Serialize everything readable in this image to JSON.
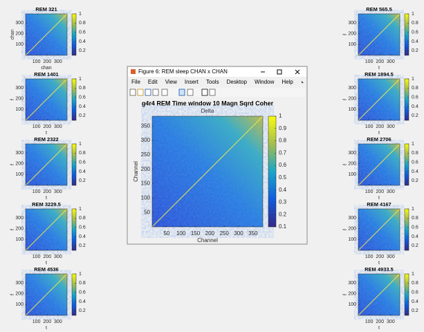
{
  "thumb_axes": {
    "xlim": [
      0,
      384
    ],
    "ylim": [
      0,
      384
    ],
    "clim": [
      0.1,
      1
    ],
    "xticks": [
      100,
      200,
      300
    ],
    "yticks": [
      100,
      200,
      300
    ],
    "cticks": [
      0.2,
      0.4,
      0.6,
      0.8,
      1
    ]
  },
  "thumbnails": [
    {
      "title": "REM 321",
      "xlabel": "chan",
      "ylabel": "chan"
    },
    {
      "title": "REM 1401",
      "xlabel": "t",
      "ylabel": "f"
    },
    {
      "title": "REM 2322",
      "xlabel": "t",
      "ylabel": "f"
    },
    {
      "title": "REM 3229.5",
      "xlabel": "t",
      "ylabel": "f"
    },
    {
      "title": "REM 4536",
      "xlabel": "t",
      "ylabel": "f"
    },
    {
      "title": "REM 565.5",
      "xlabel": "t",
      "ylabel": "f"
    },
    {
      "title": "REM 1894.5",
      "xlabel": "t",
      "ylabel": "f"
    },
    {
      "title": "REM 2706",
      "xlabel": "t",
      "ylabel": "f"
    },
    {
      "title": "REM 4167",
      "xlabel": "t",
      "ylabel": "f"
    },
    {
      "title": "REM 4933.5",
      "xlabel": "t",
      "ylabel": "f"
    }
  ],
  "window": {
    "title": "Figure 6: REM sleep CHAN x CHAN",
    "menu": [
      "File",
      "Edit",
      "View",
      "Insert",
      "Tools",
      "Desktop",
      "Window",
      "Help"
    ],
    "figure": {
      "title": "g4r4 REM Time window 10 Magn Sqrd Coher",
      "subtitle": "Delta",
      "xlabel": "Channel",
      "ylabel": "Channel",
      "xlim": [
        0,
        384
      ],
      "ylim": [
        0,
        384
      ],
      "xticks": [
        50,
        100,
        150,
        200,
        250,
        300,
        350
      ],
      "yticks": [
        50,
        100,
        150,
        200,
        250,
        300,
        350
      ],
      "clim": [
        0.1,
        1
      ],
      "cticks": [
        0.1,
        0.2,
        0.3,
        0.4,
        0.5,
        0.6,
        0.7,
        0.8,
        0.9,
        1
      ]
    }
  }
}
